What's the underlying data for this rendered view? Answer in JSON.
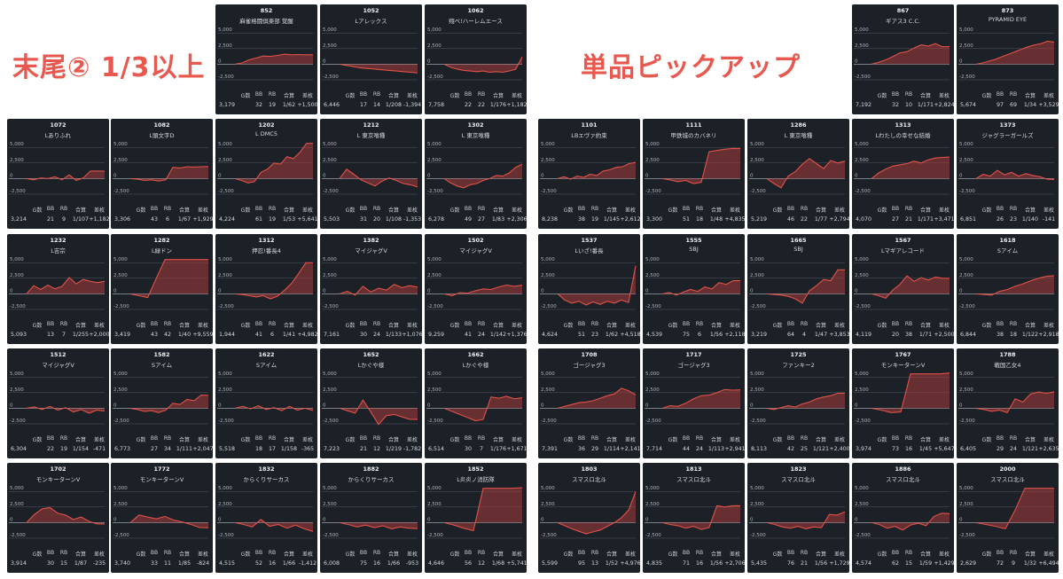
{
  "colors": {
    "heading": "#e8584f",
    "card_bg": "#1c2027",
    "line": "#e0524a",
    "fill": "#a63d3b",
    "grid": "#555a63",
    "zero": "#9aa0a8",
    "text": "#d6d9de"
  },
  "left_heading": "末尾② 1/3以上",
  "right_heading": "単品ピックアップ",
  "stat_labels": [
    "G数",
    "BB",
    "RB",
    "合算",
    "差枚"
  ],
  "axis": {
    "ticks": [
      5000,
      2500,
      0,
      -2500
    ],
    "tick_labels": [
      "5,000",
      "2,500",
      "0",
      "-2,500"
    ],
    "ylim": [
      -3500,
      5600
    ]
  },
  "chart_data": [
    {
      "type": "area",
      "id": "852",
      "name": "麻雀格闘倶楽部 覚醒",
      "stats": [
        "3,179",
        "32",
        "19",
        "1/62",
        "+1,500"
      ],
      "values": [
        0,
        200,
        700,
        1000,
        1300,
        1250,
        1400,
        1600,
        1500,
        1550,
        1500,
        1500
      ]
    },
    {
      "type": "area",
      "id": "1052",
      "name": "Lアレックス",
      "stats": [
        "6,446",
        "17",
        "14",
        "1/208",
        "-1,394"
      ],
      "values": [
        0,
        -200,
        -400,
        -600,
        -700,
        -800,
        -900,
        -1000,
        -1100,
        -1200,
        -1300,
        -1394
      ]
    },
    {
      "type": "area",
      "id": "1062",
      "name": "翔べ!ハーレムエース",
      "stats": [
        "7,758",
        "22",
        "22",
        "1/176",
        "+1,182"
      ],
      "values": [
        0,
        -500,
        -800,
        -1000,
        -1100,
        -1200,
        -1100,
        -1300,
        -1200,
        -1300,
        -1100,
        -800,
        1182
      ]
    },
    {
      "type": "area",
      "id": "867",
      "name": "ギアス3 C.C.",
      "stats": [
        "7,192",
        "32",
        "10",
        "1/171",
        "+2,824"
      ],
      "values": [
        0,
        300,
        700,
        1200,
        1800,
        2000,
        2600,
        3100,
        2900,
        3300,
        2800,
        2824
      ]
    },
    {
      "type": "area",
      "id": "873",
      "name": "PYRAMID EYE",
      "stats": [
        "5,674",
        "97",
        "69",
        "1/34",
        "+3,529"
      ],
      "values": [
        0,
        200,
        500,
        800,
        1200,
        1600,
        2000,
        2400,
        2800,
        3100,
        3300,
        3700,
        3529
      ]
    },
    {
      "type": "area",
      "id": "1072",
      "name": "Lありふれ",
      "stats": [
        "3,214",
        "21",
        "9",
        "1/107",
        "+1,182"
      ],
      "values": [
        0,
        -200,
        100,
        0,
        300,
        -200,
        600,
        -300,
        100,
        1200,
        1200,
        1182
      ]
    },
    {
      "type": "area",
      "id": "1082",
      "name": "L頭文字D",
      "stats": [
        "3,306",
        "43",
        "6",
        "1/67",
        "+1,929"
      ],
      "values": [
        0,
        -100,
        -300,
        -200,
        -400,
        -200,
        1800,
        1700,
        1900,
        1850,
        1900,
        1929
      ]
    },
    {
      "type": "area",
      "id": "1202",
      "name": "L DMC5",
      "stats": [
        "4,224",
        "61",
        "19",
        "1/53",
        "+5,641"
      ],
      "values": [
        0,
        -300,
        -700,
        -500,
        1000,
        1500,
        2500,
        2300,
        3500,
        3200,
        4200,
        5641,
        5641
      ]
    },
    {
      "type": "area",
      "id": "1212",
      "name": "L 東京喰種",
      "stats": [
        "5,503",
        "31",
        "20",
        "1/108",
        "-1,353"
      ],
      "values": [
        0,
        1500,
        700,
        -200,
        -700,
        -1200,
        -400,
        100,
        -300,
        -800,
        -1000,
        -1353
      ]
    },
    {
      "type": "area",
      "id": "1302",
      "name": "L 東京喰種",
      "stats": [
        "6,278",
        "49",
        "27",
        "1/83",
        "+2,306"
      ],
      "values": [
        0,
        -700,
        -1200,
        -1500,
        -1000,
        -800,
        -300,
        0,
        500,
        400,
        900,
        1800,
        2306
      ]
    },
    {
      "type": "area",
      "id": "1101",
      "name": "LBエヴァ約束",
      "stats": [
        "8,238",
        "38",
        "19",
        "1/145",
        "+2,612"
      ],
      "values": [
        0,
        300,
        -100,
        400,
        200,
        700,
        500,
        1200,
        1400,
        1800,
        1900,
        2400,
        2612
      ]
    },
    {
      "type": "area",
      "id": "1111",
      "name": "甲鉄城のカバネリ",
      "stats": [
        "3,300",
        "51",
        "18",
        "1/48",
        "+4,835"
      ],
      "values": [
        0,
        -200,
        -500,
        -300,
        -800,
        -600,
        4300,
        4500,
        4700,
        4835,
        4800
      ]
    },
    {
      "type": "area",
      "id": "1286",
      "name": "L 東京喰種",
      "stats": [
        "5,219",
        "46",
        "22",
        "1/77",
        "+2,794"
      ],
      "values": [
        0,
        -800,
        -1500,
        400,
        1100,
        2300,
        3200,
        2400,
        1600,
        2900,
        2500,
        2794
      ]
    },
    {
      "type": "area",
      "id": "1313",
      "name": "Lわたしの幸せな結婚",
      "stats": [
        "4,070",
        "27",
        "21",
        "1/171",
        "+3,471"
      ],
      "values": [
        0,
        900,
        1500,
        2000,
        2200,
        2400,
        2800,
        2500,
        3000,
        3300,
        3400,
        3471
      ]
    },
    {
      "type": "area",
      "id": "1373",
      "name": "ジャグラーガールズ",
      "stats": [
        "6,851",
        "26",
        "23",
        "1/140",
        "-141"
      ],
      "values": [
        0,
        700,
        400,
        1300,
        600,
        1000,
        400,
        800,
        500,
        300,
        -100,
        -141
      ]
    },
    {
      "type": "area",
      "id": "1232",
      "name": "L吉宗",
      "stats": [
        "5,093",
        "13",
        "7",
        "1/255",
        "+2,000"
      ],
      "values": [
        0,
        1300,
        700,
        1400,
        800,
        1200,
        2600,
        1600,
        2300,
        2000,
        1800,
        2000
      ]
    },
    {
      "type": "area",
      "id": "1282",
      "name": "L緑ドン",
      "stats": [
        "3,419",
        "43",
        "42",
        "1/40",
        "+9,559"
      ],
      "values": [
        0,
        -300,
        -600,
        2500,
        5500,
        5500,
        5500,
        5500,
        5500,
        5500
      ]
    },
    {
      "type": "area",
      "id": "1312",
      "name": "押忍!番長4",
      "stats": [
        "1,944",
        "41",
        "6",
        "1/41",
        "+4,982"
      ],
      "values": [
        0,
        -100,
        -300,
        -500,
        -300,
        -800,
        -400,
        600,
        1700,
        3300,
        4982,
        4982
      ]
    },
    {
      "type": "area",
      "id": "1382",
      "name": "マイジャグV",
      "stats": [
        "7,161",
        "30",
        "24",
        "1/133",
        "+1,076"
      ],
      "values": [
        0,
        400,
        -200,
        1200,
        300,
        900,
        600,
        1500,
        1000,
        1300,
        1076
      ]
    },
    {
      "type": "area",
      "id": "1502",
      "name": "マイジャグV",
      "stats": [
        "9,259",
        "41",
        "24",
        "1/142",
        "+1,376"
      ],
      "values": [
        0,
        -300,
        200,
        100,
        500,
        800,
        700,
        1100,
        1400,
        1200,
        1376
      ]
    },
    {
      "type": "area",
      "id": "1537",
      "name": "Lいざ!番長",
      "stats": [
        "4,624",
        "51",
        "23",
        "1/62",
        "+4,518"
      ],
      "values": [
        0,
        -1000,
        -1500,
        -1200,
        -1800,
        -1300,
        -1700,
        -1200,
        -1500,
        -1000,
        -1400,
        4518
      ]
    },
    {
      "type": "area",
      "id": "1555",
      "name": "SBJ",
      "stats": [
        "4,539",
        "75",
        "6",
        "1/56",
        "+2,118"
      ],
      "values": [
        0,
        200,
        -200,
        300,
        700,
        400,
        1100,
        800,
        1800,
        1500,
        2118,
        2100
      ]
    },
    {
      "type": "area",
      "id": "1665",
      "name": "SBJ",
      "stats": [
        "3,219",
        "64",
        "4",
        "1/47",
        "+3,853"
      ],
      "values": [
        0,
        -100,
        -200,
        -400,
        -800,
        -1500,
        500,
        1300,
        2300,
        2100,
        3853,
        3853
      ]
    },
    {
      "type": "area",
      "id": "1567",
      "name": "Lマギアレコード",
      "stats": [
        "4,119",
        "20",
        "38",
        "1/71",
        "+2,500"
      ],
      "values": [
        0,
        -300,
        -700,
        600,
        1500,
        2900,
        2000,
        2600,
        2200,
        2700,
        2500,
        2500
      ]
    },
    {
      "type": "area",
      "id": "1618",
      "name": "Sアイム",
      "stats": [
        "6,844",
        "38",
        "18",
        "1/122",
        "+2,918"
      ],
      "values": [
        0,
        -100,
        -200,
        400,
        700,
        1200,
        1600,
        2100,
        2500,
        2800,
        2918
      ]
    },
    {
      "type": "area",
      "id": "1512",
      "name": "マイジャグV",
      "stats": [
        "6,304",
        "22",
        "19",
        "1/154",
        "-471"
      ],
      "values": [
        0,
        200,
        -200,
        300,
        -300,
        100,
        -600,
        -200,
        -800,
        -300,
        -471
      ]
    },
    {
      "type": "area",
      "id": "1582",
      "name": "Sアイム",
      "stats": [
        "6,773",
        "27",
        "34",
        "1/111",
        "+2,047"
      ],
      "values": [
        0,
        -200,
        -500,
        -400,
        -700,
        -300,
        800,
        600,
        1400,
        1200,
        2100,
        2047
      ]
    },
    {
      "type": "area",
      "id": "1622",
      "name": "Sアイム",
      "stats": [
        "5,518",
        "18",
        "17",
        "1/158",
        "-365"
      ],
      "values": [
        0,
        300,
        -100,
        400,
        -200,
        100,
        -400,
        300,
        -300,
        0,
        -365
      ]
    },
    {
      "type": "area",
      "id": "1652",
      "name": "Lかぐや様",
      "stats": [
        "7,223",
        "21",
        "12",
        "1/219",
        "-1,782"
      ],
      "values": [
        0,
        -400,
        -800,
        1300,
        -600,
        -2600,
        -1200,
        -1000,
        -1400,
        -1800,
        -1782
      ]
    },
    {
      "type": "area",
      "id": "1662",
      "name": "Lかぐや様",
      "stats": [
        "6,514",
        "30",
        "7",
        "1/176",
        "+1,671"
      ],
      "values": [
        0,
        -500,
        -1000,
        -1500,
        -2000,
        -1800,
        1800,
        1600,
        1900,
        1500,
        1671
      ]
    },
    {
      "type": "area",
      "id": "1708",
      "name": "ゴージャグ3",
      "stats": [
        "7,391",
        "36",
        "29",
        "1/114",
        "+2,141"
      ],
      "values": [
        0,
        300,
        600,
        900,
        1000,
        1200,
        1600,
        2000,
        2300,
        3200,
        2800,
        2141
      ]
    },
    {
      "type": "area",
      "id": "1717",
      "name": "ゴージャグ3",
      "stats": [
        "7,714",
        "44",
        "24",
        "1/113",
        "+2,941"
      ],
      "values": [
        0,
        400,
        300,
        800,
        1500,
        2000,
        2100,
        2500,
        3000,
        2900,
        2941
      ]
    },
    {
      "type": "area",
      "id": "1725",
      "name": "ファンキー2",
      "stats": [
        "8,113",
        "42",
        "25",
        "1/121",
        "+2,400"
      ],
      "values": [
        0,
        -200,
        100,
        400,
        200,
        700,
        1000,
        1500,
        1800,
        2000,
        2400,
        2400
      ]
    },
    {
      "type": "area",
      "id": "1767",
      "name": "モンキーターンV",
      "stats": [
        "3,974",
        "73",
        "16",
        "1/45",
        "+5,647"
      ],
      "values": [
        0,
        -300,
        -700,
        -600,
        5500,
        5500,
        5500,
        5500,
        5647
      ]
    },
    {
      "type": "area",
      "id": "1788",
      "name": "戦国乙女4",
      "stats": [
        "6,405",
        "29",
        "24",
        "1/121",
        "+2,635"
      ],
      "values": [
        0,
        -200,
        -500,
        -300,
        -700,
        1500,
        1000,
        2300,
        2600,
        2400,
        2635
      ]
    },
    {
      "type": "area",
      "id": "1702",
      "name": "モンキーターンV",
      "stats": [
        "3,914",
        "30",
        "15",
        "1/87",
        "-235"
      ],
      "values": [
        0,
        1300,
        2200,
        2400,
        1500,
        1200,
        500,
        900,
        200,
        -200,
        -235
      ]
    },
    {
      "type": "area",
      "id": "1772",
      "name": "モンキーターンV",
      "stats": [
        "3,740",
        "33",
        "11",
        "1/85",
        "-824"
      ],
      "values": [
        0,
        1200,
        900,
        600,
        1000,
        400,
        100,
        -300,
        -800,
        -824
      ]
    },
    {
      "type": "area",
      "id": "1832",
      "name": "からくりサーカス",
      "stats": [
        "4,515",
        "52",
        "16",
        "1/66",
        "-1,412"
      ],
      "values": [
        0,
        -300,
        -700,
        500,
        -600,
        -300,
        -900,
        -400,
        -1000,
        -1412
      ]
    },
    {
      "type": "area",
      "id": "1882",
      "name": "からくりサーカス",
      "stats": [
        "6,008",
        "75",
        "16",
        "1/66",
        "-953"
      ],
      "values": [
        0,
        -300,
        -700,
        -400,
        -800,
        -500,
        -1000,
        -700,
        -900,
        -953
      ]
    },
    {
      "type": "area",
      "id": "1852",
      "name": "L炎炎ノ消防隊",
      "stats": [
        "4,646",
        "56",
        "12",
        "1/68",
        "+5,741"
      ],
      "values": [
        0,
        -400,
        -900,
        -1300,
        5500,
        5500,
        5500,
        5500,
        5600
      ]
    },
    {
      "type": "area",
      "id": "1803",
      "name": "スマスロ北斗",
      "stats": [
        "5,599",
        "95",
        "13",
        "1/52",
        "+4,976"
      ],
      "values": [
        0,
        -500,
        -1000,
        -1400,
        -1800,
        -1500,
        -1200,
        -600,
        0,
        800,
        2000,
        4976
      ]
    },
    {
      "type": "area",
      "id": "1813",
      "name": "スマスロ北斗",
      "stats": [
        "4,835",
        "71",
        "16",
        "1/56",
        "+2,706"
      ],
      "values": [
        0,
        -300,
        -500,
        -900,
        -600,
        -1100,
        -800,
        2700,
        2500,
        2706,
        2706
      ]
    },
    {
      "type": "area",
      "id": "1823",
      "name": "スマスロ北斗",
      "stats": [
        "5,435",
        "76",
        "21",
        "1/56",
        "+1,729"
      ],
      "values": [
        0,
        -300,
        -700,
        -900,
        -600,
        -1000,
        -700,
        -800,
        1300,
        1200,
        1729
      ]
    },
    {
      "type": "area",
      "id": "1886",
      "name": "スマスロ北斗",
      "stats": [
        "4,574",
        "62",
        "15",
        "1/59",
        "+1,429"
      ],
      "values": [
        0,
        -300,
        -900,
        -600,
        -1200,
        -400,
        -100,
        -500,
        1000,
        1500,
        1429
      ]
    },
    {
      "type": "area",
      "id": "2000",
      "name": "スマスロ北斗",
      "stats": [
        "2,629",
        "72",
        "9",
        "1/32",
        "+6,494"
      ],
      "values": [
        0,
        -300,
        -600,
        -1000,
        2000,
        5500,
        5500,
        5500,
        5500
      ]
    }
  ]
}
